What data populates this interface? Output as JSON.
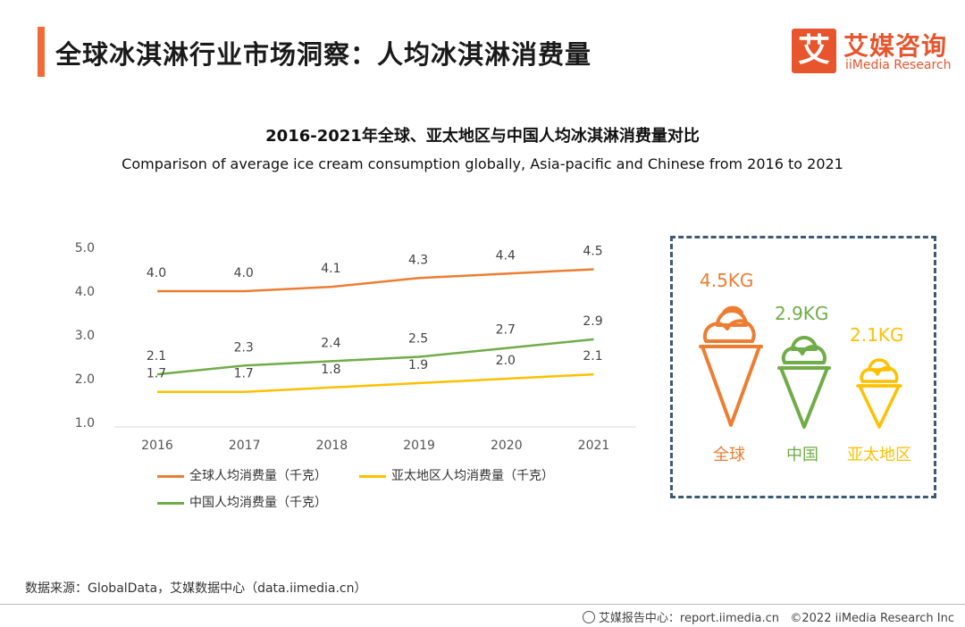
{
  "header": {
    "title": "全球冰淇淋行业市场洞察：人均冰淇淋消费量",
    "logo_mark": "艾",
    "logo_cn": "艾媒咨询",
    "logo_en": "iiMedia Research"
  },
  "chart_data": {
    "type": "line",
    "title": "2016-2021年全球、亚太地区与中国人均冰淇淋消费量对比",
    "subtitle": "Comparison of average ice cream consumption globally, Asia-pacific and Chinese from 2016 to 2021",
    "categories": [
      "2016",
      "2017",
      "2018",
      "2019",
      "2020",
      "2021"
    ],
    "y_ticks": [
      "1.0",
      "2.0",
      "3.0",
      "4.0",
      "5.0"
    ],
    "ylim": [
      1.0,
      5.0
    ],
    "series": [
      {
        "name": "全球人均消费量（千克）",
        "color": "#ed7d31",
        "values": [
          4.0,
          4.0,
          4.1,
          4.3,
          4.4,
          4.5
        ],
        "labels": [
          "4.0",
          "4.0",
          "4.1",
          "4.3",
          "4.4",
          "4.5"
        ]
      },
      {
        "name": "亚太地区人均消费量（千克）",
        "color": "#ffc000",
        "values": [
          1.7,
          1.7,
          1.8,
          1.9,
          2.0,
          2.1
        ],
        "labels": [
          "1.7",
          "1.7",
          "1.8",
          "1.9",
          "2.0",
          "2.1"
        ]
      },
      {
        "name": "中国人均消费量（千克）",
        "color": "#70ad47",
        "values": [
          2.1,
          2.3,
          2.4,
          2.5,
          2.7,
          2.9
        ],
        "labels": [
          "2.1",
          "2.3",
          "2.4",
          "2.5",
          "2.7",
          "2.9"
        ]
      }
    ],
    "legend_position": "bottom-left"
  },
  "panel": {
    "items": [
      {
        "kg": "4.5KG",
        "region": "全球",
        "color": "#ed7d31"
      },
      {
        "kg": "2.9KG",
        "region": "中国",
        "color": "#70ad47"
      },
      {
        "kg": "2.1KG",
        "region": "亚太地区",
        "color": "#ffc000"
      }
    ]
  },
  "footer": {
    "source": "数据来源：GlobalData，艾媒数据中心（data.iimedia.cn）",
    "report": "艾媒报告中心：report.iimedia.cn",
    "copyright": "©2022  iiMedia Research  Inc"
  }
}
